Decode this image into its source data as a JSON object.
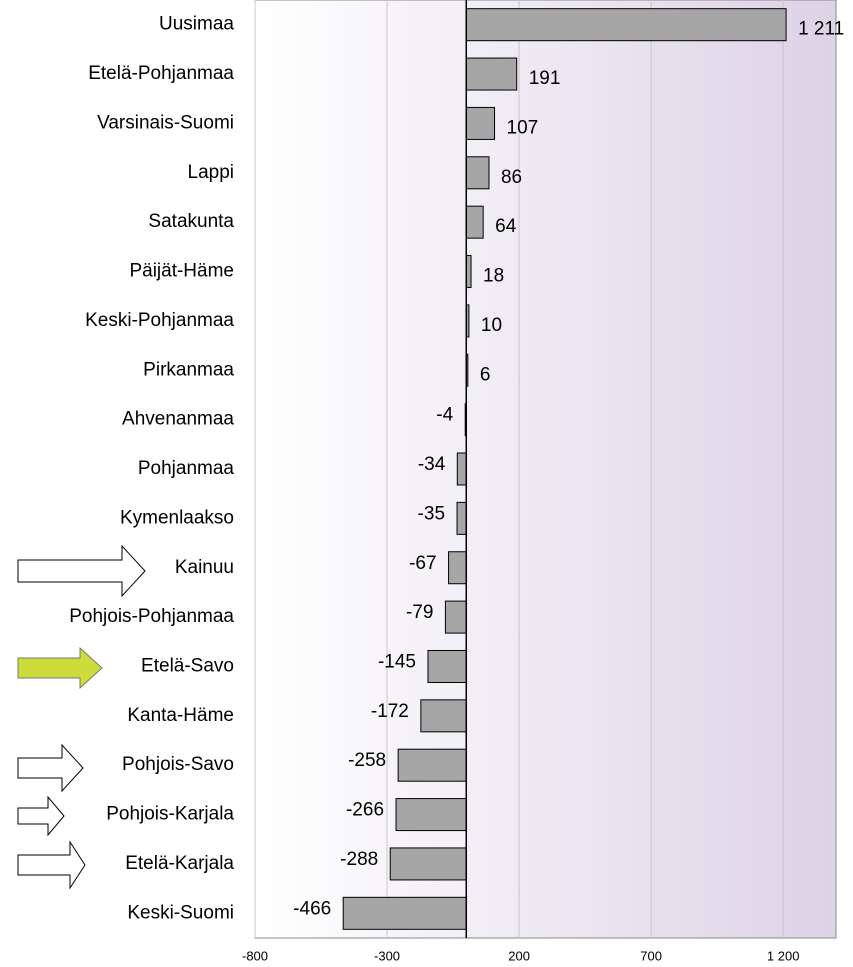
{
  "chart_data": {
    "type": "bar",
    "categories": [
      "Uusimaa",
      "Etelä-Pohjanmaa",
      "Varsinais-Suomi",
      "Lappi",
      "Satakunta",
      "Päijät-Häme",
      "Keski-Pohjanmaa",
      "Pirkanmaa",
      "Ahvenanmaa",
      "Pohjanmaa",
      "Kymenlaakso",
      "Kainuu",
      "Pohjois-Pohjanmaa",
      "Etelä-Savo",
      "Kanta-Häme",
      "Pohjois-Savo",
      "Pohjois-Karjala",
      "Etelä-Karjala",
      "Keski-Suomi"
    ],
    "values": [
      1211,
      191,
      107,
      86,
      64,
      18,
      10,
      6,
      -4,
      -34,
      -35,
      -67,
      -79,
      -145,
      -172,
      -258,
      -266,
      -288,
      -466
    ],
    "value_labels": [
      "1 211",
      "191",
      "107",
      "86",
      "64",
      "18",
      "10",
      "6",
      "-4",
      "-34",
      "-35",
      "-67",
      "-79",
      "-145",
      "-172",
      "-258",
      "-266",
      "-288",
      "-466"
    ],
    "color": "#a6a6a6",
    "xlim": [
      -800,
      1400
    ],
    "xticks": [
      -800,
      -300,
      200,
      700,
      {
        "value": 1200,
        "label": "1 200"
      }
    ],
    "grid": true
  }
}
